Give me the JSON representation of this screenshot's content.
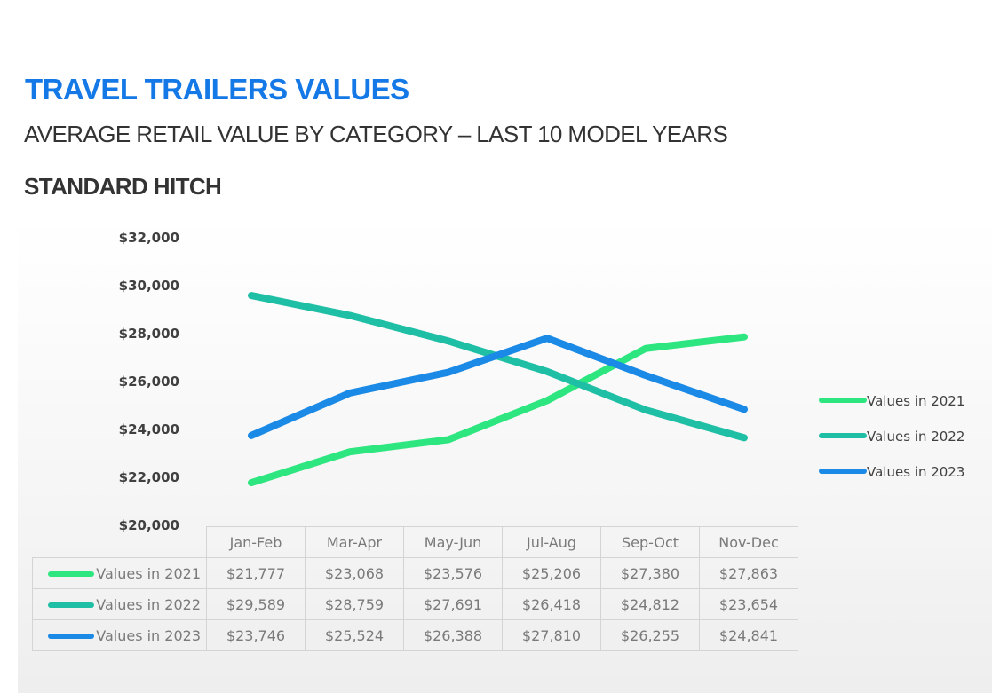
{
  "header": {
    "title": "TRAVEL TRAILERS VALUES",
    "subtitle": "AVERAGE RETAIL VALUE BY CATEGORY – LAST 10 MODEL YEARS",
    "section": "STANDARD HITCH"
  },
  "chart_data": {
    "type": "line",
    "title": "STANDARD HITCH",
    "categories": [
      "Jan-Feb",
      "Mar-Apr",
      "May-Jun",
      "Jul-Aug",
      "Sep-Oct",
      "Nov-Dec"
    ],
    "series": [
      {
        "name": "Values in 2021",
        "color": "#2ee680",
        "values": [
          21777,
          23068,
          23576,
          25206,
          27380,
          27863
        ],
        "labels": [
          "$21,777",
          "$23,068",
          "$23,576",
          "$25,206",
          "$27,380",
          "$27,863"
        ]
      },
      {
        "name": "Values in 2022",
        "color": "#1fbfa6",
        "values": [
          29589,
          28759,
          27691,
          26418,
          24812,
          23654
        ],
        "labels": [
          "$29,589",
          "$28,759",
          "$27,691",
          "$26,418",
          "$24,812",
          "$23,654"
        ]
      },
      {
        "name": "Values in 2023",
        "color": "#1a8ae6",
        "values": [
          23746,
          25524,
          26388,
          27810,
          26255,
          24841
        ],
        "labels": [
          "$23,746",
          "$25,524",
          "$26,388",
          "$27,810",
          "$26,255",
          "$24,841"
        ]
      }
    ],
    "yticks": [
      20000,
      22000,
      24000,
      26000,
      28000,
      30000,
      32000
    ],
    "ytick_labels": [
      "$20,000",
      "$22,000",
      "$24,000",
      "$26,000",
      "$28,000",
      "$30,000",
      "$32,000"
    ],
    "ylim": [
      20000,
      32000
    ],
    "xlabel": "",
    "ylabel": "",
    "grid": false,
    "legend": "right",
    "data_table": true
  }
}
